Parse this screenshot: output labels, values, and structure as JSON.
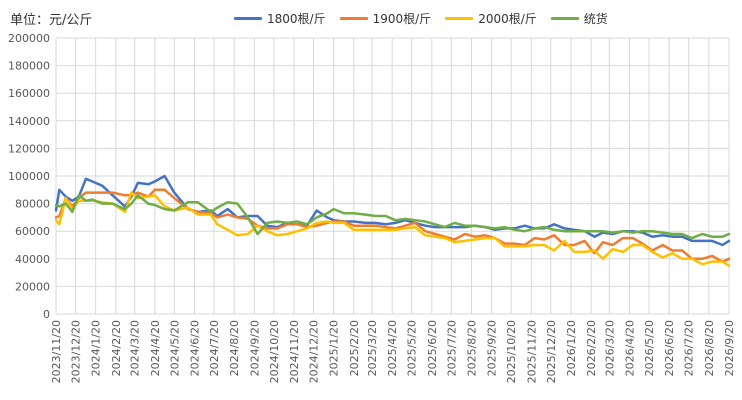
{
  "chart_data": {
    "type": "line",
    "unit_label": "单位：元/公斤",
    "ylim": [
      0,
      200000
    ],
    "y_ticks": [
      "0",
      "20000",
      "40000",
      "60000",
      "80000",
      "100000",
      "120000",
      "140000",
      "160000",
      "180000",
      "200000"
    ],
    "x_tick_labels": [
      "2023/11/20",
      "2023/12/20",
      "2024/1/20",
      "2024/2/20",
      "2024/3/20",
      "2024/4/20",
      "2024/5/20",
      "2024/6/20",
      "2024/7/20",
      "2024/8/20",
      "2024/9/20",
      "2024/10/20",
      "2024/11/20",
      "2024/12/20",
      "2025/1/20",
      "2025/2/20",
      "2025/3/20",
      "2025/4/20",
      "2025/5/20",
      "2025/6/20",
      "2025/7/20",
      "2025/8/20",
      "2025/9/20",
      "2025/10/20",
      "2025/11/20",
      "2025/12/20",
      "2026/1/20",
      "2026/2/20",
      "2026/3/20",
      "2026/4/20",
      "2026/5/20",
      "2026/6/20",
      "2026/7/20",
      "2026/8/20",
      "2026/9/20"
    ],
    "x": [
      "2023/11/20",
      "2023/11/25",
      "2023/12/5",
      "2023/12/15",
      "2023/12/25",
      "2024/1/5",
      "2024/1/15",
      "2024/1/30",
      "2024/2/15",
      "2024/3/5",
      "2024/3/15",
      "2024/3/25",
      "2024/4/10",
      "2024/4/20",
      "2024/5/5",
      "2024/5/20",
      "2024/6/10",
      "2024/6/25",
      "2024/7/15",
      "2024/7/25",
      "2024/8/10",
      "2024/8/25",
      "2024/9/10",
      "2024/9/25",
      "2024/10/10",
      "2024/10/25",
      "2024/11/10",
      "2024/11/25",
      "2024/12/10",
      "2024/12/25",
      "2025/1/10",
      "2025/1/20",
      "2025/2/5",
      "2025/2/20",
      "2025/3/10",
      "2025/3/25",
      "2025/4/10",
      "2025/4/25",
      "2025/5/10",
      "2025/5/25",
      "2025/6/10",
      "2025/6/25",
      "2025/7/10",
      "2025/7/25",
      "2025/8/10",
      "2025/8/25",
      "2025/9/10",
      "2025/9/25",
      "2025/10/10",
      "2025/10/25",
      "2025/11/10",
      "2025/11/25",
      "2025/12/10",
      "2025/12/25",
      "2026/1/10",
      "2026/1/25",
      "2026/2/10",
      "2026/2/25",
      "2026/3/10",
      "2026/3/25",
      "2026/4/10",
      "2026/4/25",
      "2026/5/10",
      "2026/5/25",
      "2026/6/10",
      "2026/6/25",
      "2026/7/10",
      "2026/7/25",
      "2026/8/10",
      "2026/8/25",
      "2026/9/10",
      "2026/9/20"
    ],
    "series": [
      {
        "name": "1800根/斤",
        "color": "#4472C4",
        "values": [
          75000,
          90000,
          85000,
          82000,
          85000,
          98000,
          96000,
          93000,
          86000,
          78000,
          85000,
          95000,
          94000,
          96000,
          100000,
          88000,
          76000,
          74000,
          75000,
          71000,
          76000,
          70000,
          71000,
          71000,
          64000,
          63000,
          66000,
          65000,
          64000,
          75000,
          70000,
          68000,
          67000,
          67000,
          66000,
          66000,
          65000,
          66000,
          68000,
          66000,
          64000,
          63000,
          63000,
          63000,
          63000,
          64000,
          63000,
          61000,
          62000,
          62000,
          64000,
          62000,
          62000,
          65000,
          62000,
          61000,
          60000,
          56000,
          59000,
          58000,
          60000,
          60000,
          59000,
          56000,
          57000,
          56000,
          56000,
          53000,
          53000,
          53000,
          50000,
          53000
        ]
      },
      {
        "name": "1900根/斤",
        "color": "#ED7D31",
        "values": [
          70000,
          71000,
          84000,
          78000,
          84000,
          88000,
          88000,
          88000,
          88000,
          86000,
          86000,
          88000,
          85000,
          90000,
          90000,
          84000,
          76000,
          74000,
          73000,
          70000,
          72000,
          70000,
          69000,
          64000,
          62000,
          62000,
          65000,
          65000,
          63000,
          64000,
          66000,
          67000,
          67000,
          64000,
          64000,
          64000,
          63000,
          62000,
          64000,
          66000,
          60000,
          58000,
          56000,
          54000,
          58000,
          56000,
          57000,
          55000,
          51000,
          51000,
          50000,
          55000,
          54000,
          57000,
          50000,
          50000,
          53000,
          44000,
          52000,
          50000,
          55000,
          55000,
          51000,
          46000,
          50000,
          46000,
          46000,
          40000,
          40000,
          42000,
          38000,
          40000
        ]
      },
      {
        "name": "2000根/斤",
        "color": "#FFC000",
        "values": [
          68000,
          65000,
          84000,
          76000,
          82000,
          82000,
          82000,
          81000,
          80000,
          74000,
          88000,
          84000,
          85000,
          86000,
          78000,
          75000,
          77000,
          72000,
          72000,
          65000,
          61000,
          57000,
          58000,
          64000,
          60000,
          57000,
          58000,
          60000,
          62000,
          66000,
          67000,
          66000,
          66000,
          61000,
          61000,
          61000,
          61000,
          61000,
          62000,
          63000,
          57000,
          56000,
          55000,
          52000,
          53000,
          54000,
          55000,
          55000,
          49000,
          49000,
          49000,
          50000,
          50000,
          46000,
          53000,
          45000,
          45000,
          46000,
          40000,
          47000,
          45000,
          50000,
          50000,
          45000,
          41000,
          44000,
          40000,
          40000,
          36000,
          38000,
          38000,
          35000
        ]
      },
      {
        "name": "统货",
        "color": "#70AD47",
        "values": [
          79000,
          78000,
          80000,
          74000,
          86000,
          82000,
          83000,
          80000,
          80000,
          76000,
          80000,
          86000,
          80000,
          79000,
          76000,
          75000,
          81000,
          81000,
          74000,
          77000,
          81000,
          80000,
          70000,
          58000,
          66000,
          67000,
          66000,
          67000,
          65000,
          70000,
          73000,
          76000,
          73000,
          73000,
          72000,
          71000,
          71000,
          68000,
          69000,
          68000,
          67000,
          65000,
          63000,
          66000,
          64000,
          64000,
          63000,
          62000,
          63000,
          61000,
          60000,
          62000,
          63000,
          61000,
          60000,
          60000,
          60000,
          60000,
          60000,
          59000,
          60000,
          59000,
          60000,
          60000,
          59000,
          58000,
          58000,
          55000,
          58000,
          56000,
          56000,
          58000
        ]
      }
    ],
    "grid": true,
    "legend_position": "top"
  }
}
